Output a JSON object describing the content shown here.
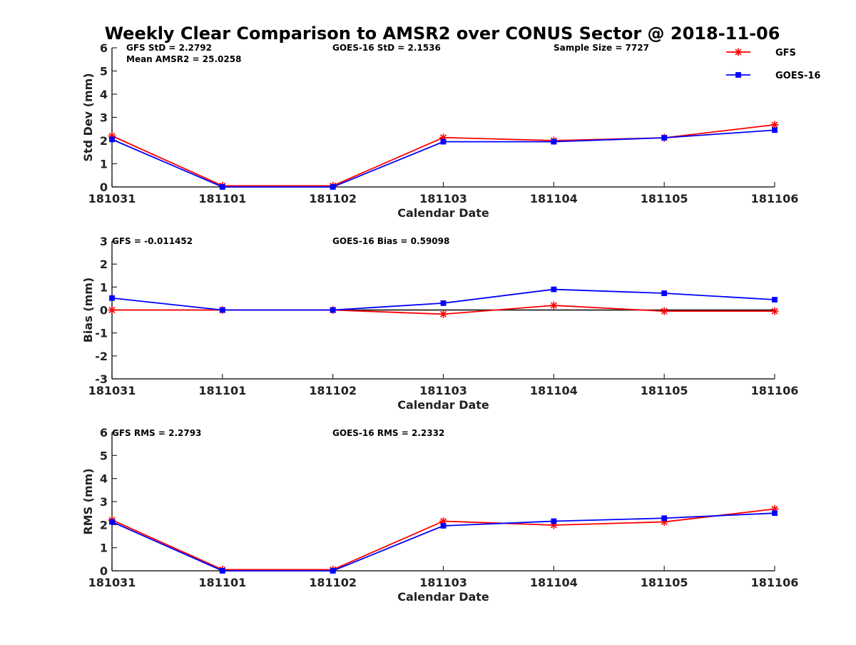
{
  "title": "Weekly Clear Comparison to AMSR2 over CONUS Sector @ 2018-11-06",
  "legend": [
    {
      "name": "GFS",
      "color": "#ff0000",
      "marker": "asterisk"
    },
    {
      "name": "GOES-16",
      "color": "#0000ff",
      "marker": "square"
    }
  ],
  "chart_data": [
    {
      "type": "line",
      "x": [
        "181031",
        "181101",
        "181102",
        "181103",
        "181104",
        "181105",
        "181106"
      ],
      "xlabel": "Calendar Date",
      "ylabel": "Std Dev (mm)",
      "ylim": [
        0,
        6
      ],
      "yticks": [
        0,
        1,
        2,
        3,
        4,
        5,
        6
      ],
      "zero_line": false,
      "series": [
        {
          "name": "GFS",
          "color": "#ff0000",
          "marker": "asterisk",
          "values": [
            2.2,
            0.05,
            0.05,
            2.13,
            2.0,
            2.12,
            2.68
          ]
        },
        {
          "name": "GOES-16",
          "color": "#0000ff",
          "marker": "square",
          "values": [
            2.05,
            0.0,
            0.0,
            1.95,
            1.95,
            2.12,
            2.45
          ]
        }
      ],
      "annotations": [
        {
          "text": "GFS StD = 2.2792"
        },
        {
          "text": "Mean AMSR2 = 25.0258"
        },
        {
          "text": "GOES-16 StD = 2.1536"
        },
        {
          "text": "Sample Size = 7727"
        }
      ]
    },
    {
      "type": "line",
      "x": [
        "181031",
        "181101",
        "181102",
        "181103",
        "181104",
        "181105",
        "181106"
      ],
      "xlabel": "Calendar Date",
      "ylabel": "Bias (mm)",
      "ylim": [
        -3,
        3
      ],
      "yticks": [
        -3,
        -2,
        -1,
        0,
        1,
        2,
        3
      ],
      "zero_line": true,
      "series": [
        {
          "name": "GFS",
          "color": "#ff0000",
          "marker": "asterisk",
          "values": [
            0.0,
            0.0,
            0.0,
            -0.18,
            0.2,
            -0.05,
            -0.05
          ]
        },
        {
          "name": "GOES-16",
          "color": "#0000ff",
          "marker": "square",
          "values": [
            0.52,
            0.0,
            0.0,
            0.3,
            0.9,
            0.73,
            0.45
          ]
        }
      ],
      "annotations": [
        {
          "text": "GFS = -0.011452"
        },
        {
          "text": "GOES-16 Bias  = 0.59098"
        }
      ]
    },
    {
      "type": "line",
      "x": [
        "181031",
        "181101",
        "181102",
        "181103",
        "181104",
        "181105",
        "181106"
      ],
      "xlabel": "Calendar Date",
      "ylabel": "RMS (mm)",
      "ylim": [
        0,
        6
      ],
      "yticks": [
        0,
        1,
        2,
        3,
        4,
        5,
        6
      ],
      "zero_line": false,
      "series": [
        {
          "name": "GFS",
          "color": "#ff0000",
          "marker": "asterisk",
          "values": [
            2.2,
            0.05,
            0.05,
            2.15,
            1.98,
            2.12,
            2.68
          ]
        },
        {
          "name": "GOES-16",
          "color": "#0000ff",
          "marker": "square",
          "values": [
            2.12,
            0.0,
            0.0,
            1.95,
            2.15,
            2.28,
            2.5
          ]
        }
      ],
      "annotations": [
        {
          "text": "GFS RMS = 2.2793"
        },
        {
          "text": "GOES-16 RMS = 2.2332"
        }
      ]
    }
  ]
}
